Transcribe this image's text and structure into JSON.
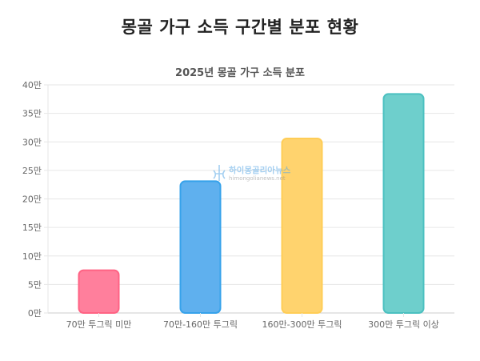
{
  "page": {
    "title": "몽골 가구 소득 구간별 분포 현황"
  },
  "watermark": {
    "text": "하이몽골리아뉴스",
    "url": "himongolianews.net"
  },
  "colors": {
    "grid": "#e6e6e6",
    "axis": "#cccccc",
    "tick_text": "#666666"
  },
  "chart_data": {
    "type": "bar",
    "title": "2025년 몽골 가구 소득 분포",
    "xlabel": "",
    "ylabel": "",
    "categories": [
      "70만 투그릭 미만",
      "70만-160만 투그릭",
      "160만-300만 투그릭",
      "300만 투그릭 이상"
    ],
    "values": [
      7.5,
      23.1,
      30.6,
      38.4
    ],
    "ylim": [
      0,
      40
    ],
    "yticks": [
      0,
      5,
      10,
      15,
      20,
      25,
      30,
      35,
      40
    ],
    "ytick_labels": [
      "0만",
      "5만",
      "10만",
      "15만",
      "20만",
      "25만",
      "30만",
      "35만",
      "40만"
    ],
    "bar_colors": [
      {
        "fill": "#ff7f9c",
        "stroke": "#ff6384"
      },
      {
        "fill": "#5fb0ee",
        "stroke": "#36a2eb"
      },
      {
        "fill": "#ffd36e",
        "stroke": "#ffcd56"
      },
      {
        "fill": "#6ecfcc",
        "stroke": "#4bc0c0"
      }
    ],
    "grid": true,
    "legend": "none"
  }
}
